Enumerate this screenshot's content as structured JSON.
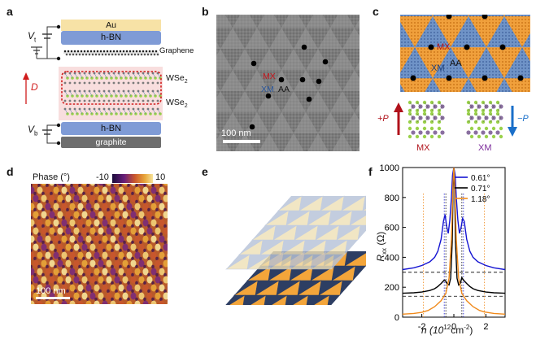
{
  "panels": {
    "a": {
      "label": "a",
      "layers": {
        "au": "Au",
        "hbn_top": "h-BN",
        "graphene": "Graphene",
        "wse2_upper": "WSe",
        "wse2_lower": "WSe",
        "hbn_bottom": "h-BN",
        "graphite": "graphite"
      },
      "sub2": "2",
      "vt": "V",
      "vt_sub": "t",
      "vb": "V",
      "vb_sub": "b",
      "d_label": "D",
      "colors": {
        "au": "#f7e2a6",
        "hbn": "#7f9bd6",
        "graphite": "#6e6e6e",
        "wse2_box": "#f4c7c7",
        "arrow": "#d01c1c"
      }
    },
    "b": {
      "label": "b",
      "mx": "MX",
      "xm": "XM",
      "aa": "AA",
      "scale": "100 nm",
      "colors": {
        "mx": "#c4161c",
        "xm": "#2a5599"
      }
    },
    "c": {
      "label": "c",
      "mx": "MX",
      "xm": "XM",
      "aa": "AA",
      "plus_p": "+P",
      "minus_p": "−P",
      "mx_bottom": "MX",
      "xm_bottom": "XM",
      "colors": {
        "orange": "#f0a03c",
        "blue": "#6f93c7",
        "red": "#b0121b",
        "blue_arrow": "#1a6fc9",
        "purple": "#7b2a9a"
      }
    },
    "d": {
      "label": "d",
      "phase": "Phase (°)",
      "cb_min": "-10",
      "cb_max": "10",
      "scale": "100 nm"
    },
    "e": {
      "label": "e",
      "colors": {
        "orange": "#f3a53a",
        "navy": "#2d3e63",
        "pale": "#efe1b8",
        "grey": "#b7c3d8"
      }
    },
    "f": {
      "label": "f",
      "ylabel": "R",
      "ylabel_sub": "xx",
      "ylabel_unit": " (Ω)",
      "xlabel": "n (10",
      "xlabel_sup": "12",
      "xlabel_unit": "cm",
      "xlabel_sup2": "-2",
      "xlabel_end": ")",
      "legend": [
        "0.61°",
        "0.71°",
        "1.18°"
      ]
    }
  },
  "chart_data": {
    "type": "line",
    "title": "",
    "xlabel": "n (10^12 cm^-2)",
    "ylabel": "Rxx (Ω)",
    "xlim": [
      -3.2,
      3.2
    ],
    "ylim": [
      0,
      1000
    ],
    "x_ticks": [
      -2,
      0,
      2
    ],
    "y_ticks": [
      0,
      200,
      400,
      600,
      800,
      1000
    ],
    "series": [
      {
        "name": "0.61°",
        "color": "#1414d2",
        "x": [
          -3.2,
          -2.5,
          -2.0,
          -1.5,
          -1.2,
          -1.0,
          -0.8,
          -0.65,
          -0.55,
          -0.45,
          -0.35,
          -0.25,
          -0.15,
          -0.08,
          0,
          0.08,
          0.15,
          0.25,
          0.35,
          0.45,
          0.55,
          0.65,
          0.8,
          1.0,
          1.2,
          1.5,
          2.0,
          2.5,
          3.2
        ],
        "y": [
          318,
          330,
          345,
          370,
          400,
          440,
          520,
          640,
          685,
          610,
          560,
          650,
          800,
          950,
          1000,
          950,
          800,
          650,
          560,
          600,
          660,
          640,
          520,
          440,
          400,
          370,
          345,
          330,
          318
        ]
      },
      {
        "name": "0.71°",
        "color": "#000000",
        "x": [
          -3.2,
          -2.5,
          -2.0,
          -1.5,
          -1.2,
          -1.0,
          -0.8,
          -0.6,
          -0.5,
          -0.4,
          -0.3,
          -0.2,
          -0.1,
          -0.05,
          0,
          0.05,
          0.1,
          0.2,
          0.3,
          0.4,
          0.5,
          0.6,
          0.8,
          1.0,
          1.2,
          1.5,
          2.0,
          2.5,
          3.2
        ],
        "y": [
          160,
          163,
          168,
          178,
          190,
          205,
          225,
          248,
          240,
          220,
          215,
          260,
          500,
          850,
          1000,
          850,
          500,
          260,
          215,
          225,
          265,
          248,
          225,
          205,
          190,
          178,
          168,
          163,
          160
        ]
      },
      {
        "name": "1.18°",
        "color": "#f08a1c",
        "x": [
          -3.2,
          -2.5,
          -2.0,
          -1.6,
          -1.2,
          -0.8,
          -0.5,
          -0.3,
          -0.15,
          -0.05,
          0,
          0.05,
          0.15,
          0.3,
          0.5,
          0.8,
          1.2,
          1.6,
          1.9,
          2.5,
          3.2
        ],
        "y": [
          20,
          25,
          32,
          45,
          70,
          110,
          160,
          260,
          520,
          900,
          1000,
          900,
          520,
          260,
          160,
          110,
          70,
          45,
          35,
          25,
          20
        ]
      }
    ],
    "reference_lines": [
      {
        "type": "horizontal",
        "y": 300,
        "style": "dashed"
      },
      {
        "type": "horizontal",
        "y": 140,
        "style": "dashed"
      },
      {
        "type": "vertical",
        "x": -0.6,
        "style": "dotted",
        "color": "#1414d2"
      },
      {
        "type": "vertical",
        "x": 0.6,
        "style": "dotted",
        "color": "#1414d2"
      },
      {
        "type": "vertical",
        "x": -0.5,
        "style": "dotted",
        "color": "#000000"
      },
      {
        "type": "vertical",
        "x": 0.5,
        "style": "dotted",
        "color": "#000000"
      },
      {
        "type": "vertical",
        "x": -1.9,
        "style": "dotted",
        "color": "#f08a1c"
      },
      {
        "type": "vertical",
        "x": 1.9,
        "style": "dotted",
        "color": "#f08a1c"
      }
    ],
    "legend_position": "top-right"
  }
}
